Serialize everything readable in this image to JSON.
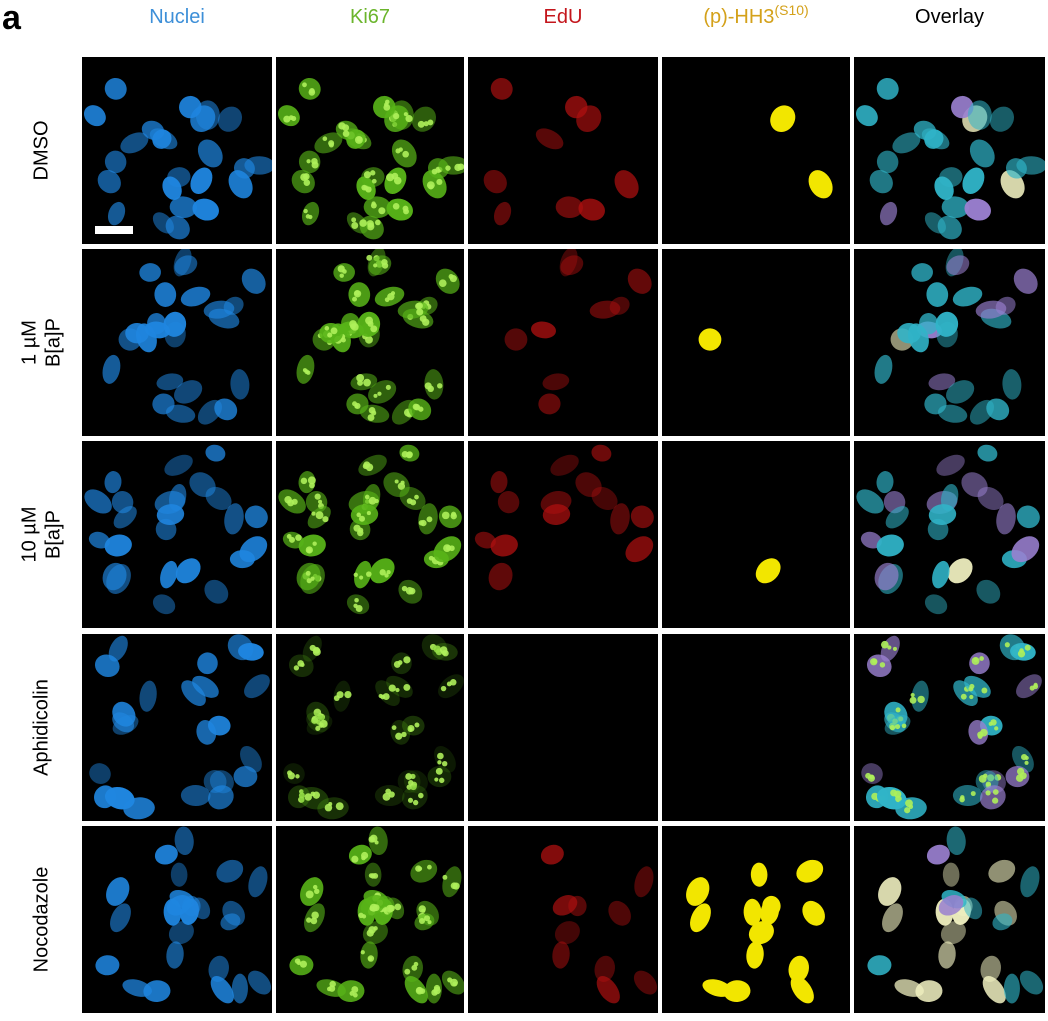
{
  "panel_label": "a",
  "columns": [
    {
      "text": "Nuclei",
      "color": "#3d8fd8"
    },
    {
      "text": "Ki67",
      "color": "#6bb52c"
    },
    {
      "text": "EdU",
      "color": "#c4161c"
    },
    {
      "text": "(p)-HH3",
      "sup": "(S10)",
      "color": "#d4a11a"
    },
    {
      "text": "Overlay",
      "color": "#000000"
    }
  ],
  "rows": [
    [
      "DMSO"
    ],
    [
      "1 µM",
      "B[a]P"
    ],
    [
      "10 µM",
      "B[a]P"
    ],
    [
      "Aphidicolin"
    ],
    [
      "Nocodazole"
    ]
  ]
}
